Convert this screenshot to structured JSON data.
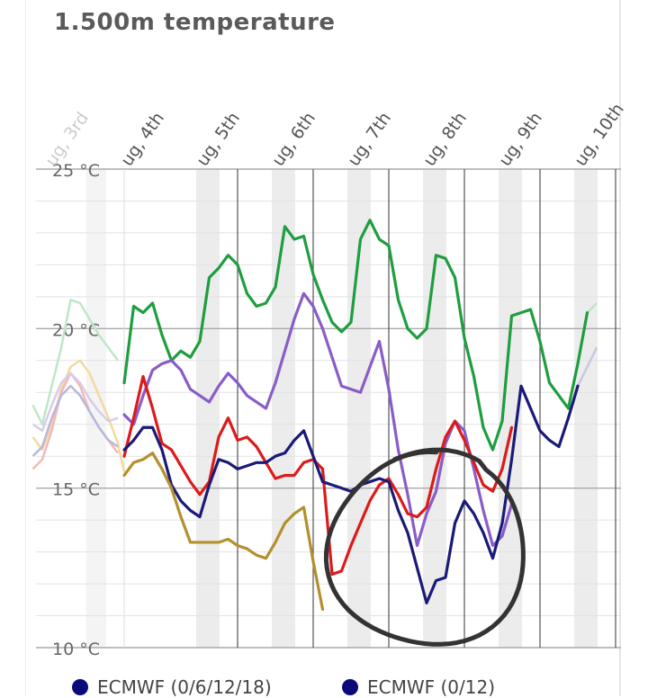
{
  "title": "1.500m temperature",
  "colors": {
    "green": "#1e9e3e",
    "purple": "#8a5cc8",
    "red": "#dd1a1a",
    "navy": "#1a1a78",
    "olive": "#b38f2e",
    "grid": "#cccccc",
    "night_band": "#ececec",
    "midnight_line": "#555555",
    "annotation": "#333333"
  },
  "chart_data": {
    "type": "line",
    "ylabel_unit": "°C",
    "ylim": [
      10,
      25
    ],
    "yticks": [
      10,
      15,
      20,
      25
    ],
    "ytick_labels": [
      "10 °C",
      "15 °C",
      "20 °C",
      "25 °C"
    ],
    "x_unit": "hours since the Aug, 4th day boundary",
    "xlim": [
      -24,
      162
    ],
    "day_labels": [
      {
        "label": "ug, 3rd",
        "t": -24,
        "faded": true
      },
      {
        "label": "ug, 4th",
        "t": 0,
        "faded": false
      },
      {
        "label": "ug, 5th",
        "t": 24,
        "faded": false
      },
      {
        "label": "ug, 6th",
        "t": 48,
        "faded": false
      },
      {
        "label": "ug, 7th",
        "t": 72,
        "faded": false
      },
      {
        "label": "ug, 8th",
        "t": 96,
        "faded": false
      },
      {
        "label": "ug, 9th",
        "t": 120,
        "faded": false
      },
      {
        "label": "ug, 10th",
        "t": 144,
        "faded": false
      }
    ],
    "series": [
      {
        "key": "green",
        "points": [
          [
            0,
            18.3
          ],
          [
            3,
            20.7
          ],
          [
            6,
            20.5
          ],
          [
            9,
            20.8
          ],
          [
            12,
            19.8
          ],
          [
            15,
            19.0
          ],
          [
            18,
            19.3
          ],
          [
            21,
            19.1
          ],
          [
            24,
            19.6
          ],
          [
            27,
            21.6
          ],
          [
            30,
            21.9
          ],
          [
            33,
            22.3
          ],
          [
            36,
            22.0
          ],
          [
            39,
            21.1
          ],
          [
            42,
            20.7
          ],
          [
            45,
            20.8
          ],
          [
            48,
            21.3
          ],
          [
            51,
            23.2
          ],
          [
            54,
            22.8
          ],
          [
            57,
            22.9
          ],
          [
            60,
            21.7
          ],
          [
            63,
            20.9
          ],
          [
            66,
            20.2
          ],
          [
            69,
            19.9
          ],
          [
            72,
            20.2
          ],
          [
            75,
            22.8
          ],
          [
            78,
            23.4
          ],
          [
            81,
            22.8
          ],
          [
            84,
            22.6
          ],
          [
            87,
            20.9
          ],
          [
            90,
            20.0
          ],
          [
            93,
            19.7
          ],
          [
            96,
            20.0
          ],
          [
            99,
            22.3
          ],
          [
            102,
            22.2
          ],
          [
            105,
            21.6
          ],
          [
            108,
            19.7
          ],
          [
            111,
            18.5
          ],
          [
            114,
            16.9
          ],
          [
            117,
            16.2
          ],
          [
            120,
            17.1
          ],
          [
            123,
            20.4
          ],
          [
            126,
            20.5
          ],
          [
            129,
            20.6
          ],
          [
            132,
            19.6
          ],
          [
            135,
            18.3
          ],
          [
            138,
            17.9
          ],
          [
            141,
            17.5
          ],
          [
            144,
            18.9
          ],
          [
            147,
            20.5
          ]
        ]
      },
      {
        "key": "purple",
        "points": [
          [
            0,
            17.3
          ],
          [
            3,
            17.0
          ],
          [
            6,
            17.9
          ],
          [
            9,
            18.7
          ],
          [
            12,
            18.9
          ],
          [
            15,
            19.0
          ],
          [
            18,
            18.7
          ],
          [
            21,
            18.1
          ],
          [
            24,
            17.9
          ],
          [
            27,
            17.7
          ],
          [
            30,
            18.2
          ],
          [
            33,
            18.6
          ],
          [
            36,
            18.3
          ],
          [
            39,
            17.9
          ],
          [
            42,
            17.7
          ],
          [
            45,
            17.5
          ],
          [
            48,
            18.3
          ],
          [
            51,
            19.3
          ],
          [
            54,
            20.3
          ],
          [
            57,
            21.1
          ],
          [
            60,
            20.7
          ],
          [
            63,
            20.0
          ],
          [
            66,
            19.1
          ],
          [
            69,
            18.2
          ],
          [
            72,
            18.1
          ],
          [
            75,
            18.0
          ],
          [
            78,
            18.8
          ],
          [
            81,
            19.6
          ],
          [
            84,
            18.1
          ],
          [
            87,
            16.2
          ],
          [
            90,
            14.8
          ],
          [
            93,
            13.2
          ],
          [
            96,
            14.2
          ],
          [
            99,
            14.9
          ],
          [
            102,
            16.4
          ],
          [
            105,
            17.1
          ],
          [
            108,
            16.8
          ],
          [
            111,
            15.6
          ],
          [
            114,
            14.3
          ],
          [
            117,
            13.2
          ],
          [
            120,
            13.5
          ],
          [
            123,
            14.5
          ]
        ]
      },
      {
        "key": "red",
        "points": [
          [
            0,
            16.0
          ],
          [
            3,
            17.2
          ],
          [
            6,
            18.5
          ],
          [
            9,
            17.5
          ],
          [
            12,
            16.4
          ],
          [
            15,
            16.2
          ],
          [
            18,
            15.7
          ],
          [
            21,
            15.2
          ],
          [
            24,
            14.8
          ],
          [
            27,
            15.2
          ],
          [
            30,
            16.6
          ],
          [
            33,
            17.2
          ],
          [
            36,
            16.5
          ],
          [
            39,
            16.6
          ],
          [
            42,
            16.3
          ],
          [
            45,
            15.8
          ],
          [
            48,
            15.3
          ],
          [
            51,
            15.4
          ],
          [
            54,
            15.4
          ],
          [
            57,
            15.8
          ],
          [
            60,
            15.9
          ],
          [
            63,
            15.6
          ],
          [
            66,
            12.3
          ],
          [
            69,
            12.4
          ],
          [
            72,
            13.2
          ],
          [
            75,
            13.9
          ],
          [
            78,
            14.6
          ],
          [
            81,
            15.1
          ],
          [
            84,
            15.3
          ],
          [
            87,
            14.8
          ],
          [
            90,
            14.2
          ],
          [
            93,
            14.1
          ],
          [
            96,
            14.4
          ],
          [
            99,
            15.6
          ],
          [
            102,
            16.6
          ],
          [
            105,
            17.1
          ],
          [
            108,
            16.5
          ],
          [
            111,
            15.8
          ],
          [
            114,
            15.1
          ],
          [
            117,
            14.9
          ],
          [
            120,
            15.6
          ],
          [
            123,
            16.9
          ]
        ]
      },
      {
        "key": "navy",
        "points": [
          [
            0,
            16.2
          ],
          [
            3,
            16.5
          ],
          [
            6,
            16.9
          ],
          [
            9,
            16.9
          ],
          [
            12,
            16.2
          ],
          [
            15,
            15.1
          ],
          [
            18,
            14.6
          ],
          [
            21,
            14.3
          ],
          [
            24,
            14.1
          ],
          [
            27,
            15.1
          ],
          [
            30,
            15.9
          ],
          [
            33,
            15.8
          ],
          [
            36,
            15.6
          ],
          [
            39,
            15.7
          ],
          [
            42,
            15.8
          ],
          [
            45,
            15.8
          ],
          [
            48,
            16.0
          ],
          [
            51,
            16.1
          ],
          [
            54,
            16.5
          ],
          [
            57,
            16.8
          ],
          [
            60,
            16.0
          ],
          [
            63,
            15.2
          ],
          [
            66,
            15.1
          ],
          [
            69,
            15.0
          ],
          [
            72,
            14.9
          ],
          [
            75,
            15.1
          ],
          [
            78,
            15.2
          ],
          [
            81,
            15.3
          ],
          [
            84,
            15.2
          ],
          [
            87,
            14.3
          ],
          [
            90,
            13.6
          ],
          [
            93,
            12.5
          ],
          [
            96,
            11.4
          ],
          [
            99,
            12.1
          ],
          [
            102,
            12.2
          ],
          [
            105,
            13.9
          ],
          [
            108,
            14.6
          ],
          [
            111,
            14.2
          ],
          [
            114,
            13.6
          ],
          [
            117,
            12.8
          ],
          [
            120,
            13.9
          ],
          [
            123,
            15.9
          ],
          [
            126,
            18.2
          ],
          [
            129,
            17.5
          ],
          [
            132,
            16.8
          ],
          [
            135,
            16.5
          ],
          [
            138,
            16.3
          ],
          [
            141,
            17.2
          ],
          [
            144,
            18.2
          ]
        ]
      },
      {
        "key": "olive",
        "points": [
          [
            0,
            15.4
          ],
          [
            3,
            15.8
          ],
          [
            6,
            15.9
          ],
          [
            9,
            16.1
          ],
          [
            12,
            15.6
          ],
          [
            15,
            15.0
          ],
          [
            18,
            14.1
          ],
          [
            21,
            13.3
          ],
          [
            24,
            13.3
          ],
          [
            27,
            13.3
          ],
          [
            30,
            13.3
          ],
          [
            33,
            13.4
          ],
          [
            36,
            13.2
          ],
          [
            39,
            13.1
          ],
          [
            42,
            12.9
          ],
          [
            45,
            12.8
          ],
          [
            48,
            13.3
          ],
          [
            51,
            13.9
          ],
          [
            54,
            14.2
          ],
          [
            57,
            14.4
          ],
          [
            60,
            12.7
          ],
          [
            63,
            11.2
          ]
        ]
      }
    ],
    "annotation": "hand-drawn circle"
  },
  "legend": [
    {
      "label": "ECMWF (0/6/12/18)",
      "color": "#0a0a7a"
    },
    {
      "label": "ECMWF (0/12)",
      "color": "#0a0a7a"
    }
  ]
}
